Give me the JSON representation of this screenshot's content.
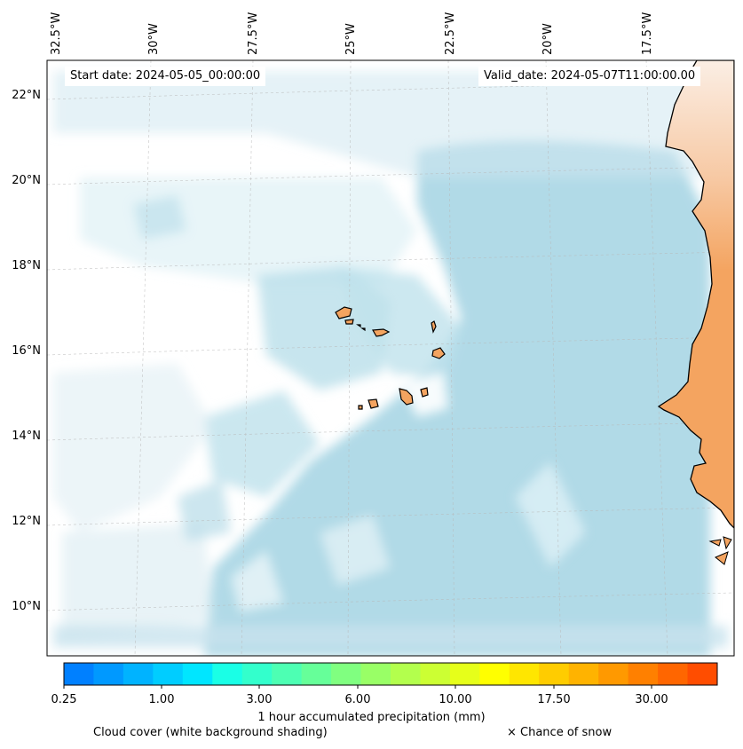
{
  "map": {
    "start_date": "Start date: 2024-05-05_00:00:00",
    "valid_date": "Valid_date: 2024-05-07T11:00:00.00",
    "lon_labels": [
      "32.5°W",
      "30°W",
      "27.5°W",
      "25°W",
      "22.5°W",
      "20°W",
      "17.5°W"
    ],
    "lat_labels": [
      "22°N",
      "20°N",
      "18°N",
      "16°N",
      "14°N",
      "12°N",
      "10°N"
    ],
    "colors": {
      "cloud": "#a8d8e6",
      "land": "#f4a460",
      "coast": "#000000"
    }
  },
  "colorbar": {
    "title": "1 hour accumulated precipitation (mm)",
    "tick_labels": [
      "0.25",
      "1.00",
      "3.00",
      "6.00",
      "10.00",
      "17.50",
      "30.00"
    ],
    "colors": [
      "#0080ff",
      "#0099ff",
      "#00b3ff",
      "#00cdff",
      "#00e6ff",
      "#1affe6",
      "#33ffcc",
      "#4dffb3",
      "#66ff99",
      "#80ff80",
      "#99ff66",
      "#b3ff4d",
      "#ccff33",
      "#e6ff1a",
      "#ffff00",
      "#ffe600",
      "#ffcc00",
      "#ffb300",
      "#ff9900",
      "#ff8000",
      "#ff6600",
      "#ff4d00"
    ]
  },
  "legend": {
    "cloud_note": "Cloud cover (white background shading)",
    "snow_note": "× Chance of snow"
  }
}
